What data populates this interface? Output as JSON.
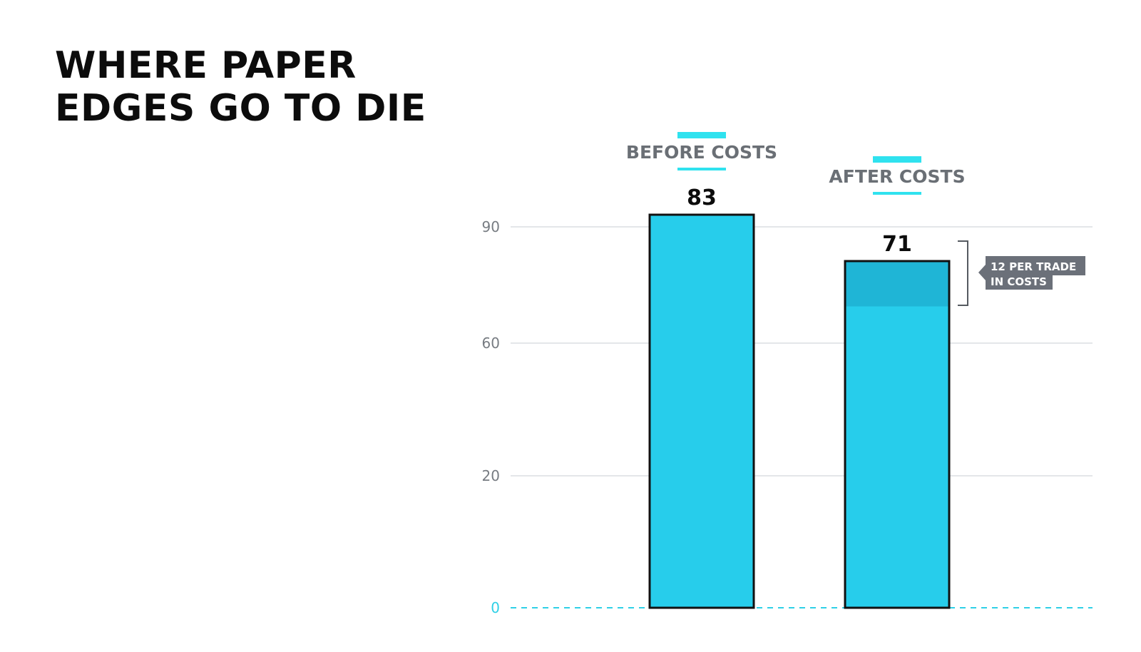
{
  "slide": {
    "title_line1": "WHERE PAPER",
    "title_line2": "EDGES GO TO DIE"
  },
  "chart_data": {
    "type": "bar",
    "categories": [
      "BEFORE COSTS",
      "AFTER COSTS"
    ],
    "values": [
      83,
      71
    ],
    "data_labels": [
      "83",
      "71"
    ],
    "y_ticks": [
      0,
      20,
      60,
      90
    ],
    "annotation": {
      "category": "AFTER COSTS",
      "line1": "12 PER TRADE",
      "line2": "IN COSTS",
      "amount": 12
    },
    "grid": true,
    "legend": "none",
    "colors": {
      "bar": "#27cdeb",
      "cost_band": "#1fb5d6",
      "accent": "#2fe2ef",
      "baseline": "#2fd0e6",
      "grid": "#e4e6e9",
      "annotation_bg": "#6b7079"
    }
  }
}
